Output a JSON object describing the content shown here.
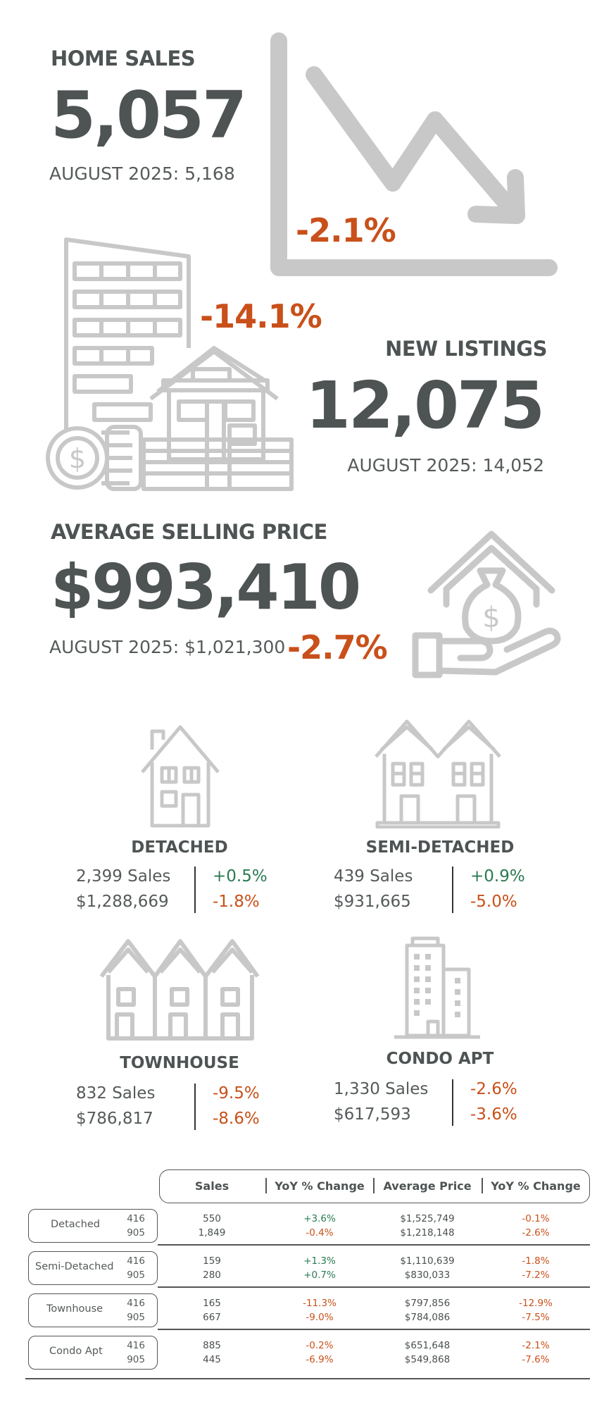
{
  "home_sales": {
    "label": "HOME SALES",
    "value": "5,057",
    "prior": "AUGUST 2025: 5,168",
    "change": "-2.1%"
  },
  "new_listings": {
    "label": "NEW LISTINGS",
    "value": "12,075",
    "prior": "AUGUST 2025: 14,052",
    "change": "-14.1%"
  },
  "avg_price": {
    "label": "AVERAGE SELLING PRICE",
    "value": "$993,410",
    "prior": "AUGUST 2025: $1,021,300",
    "change": "-2.7%"
  },
  "types": [
    {
      "name": "DETACHED",
      "sales": "2,399 Sales",
      "price": "$1,288,669",
      "sales_change": "+0.5%",
      "price_change": "-1.8%"
    },
    {
      "name": "SEMI-DETACHED",
      "sales": "439 Sales",
      "price": "$931,665",
      "sales_change": "+0.9%",
      "price_change": "-5.0%"
    },
    {
      "name": "TOWNHOUSE",
      "sales": "832 Sales",
      "price": "$786,817",
      "sales_change": "-9.5%",
      "price_change": "-8.6%"
    },
    {
      "name": "CONDO APT",
      "sales": "1,330 Sales",
      "price": "$617,593",
      "sales_change": "-2.6%",
      "price_change": "-3.6%"
    }
  ],
  "table": {
    "headers": [
      "Sales",
      "YoY % Change",
      "Average Price",
      "YoY % Change"
    ],
    "rows": [
      {
        "name": "Detached",
        "codes": [
          "416",
          "905"
        ],
        "sales": [
          "550",
          "1,849"
        ],
        "sales_change": [
          "+3.6%",
          "-0.4%"
        ],
        "price": [
          "$1,525,749",
          "$1,218,148"
        ],
        "price_change": [
          "-0.1%",
          "-2.6%"
        ]
      },
      {
        "name": "Semi-Detached",
        "codes": [
          "416",
          "905"
        ],
        "sales": [
          "159",
          "280"
        ],
        "sales_change": [
          "+1.3%",
          "+0.7%"
        ],
        "price": [
          "$1,110,639",
          "$830,033"
        ],
        "price_change": [
          "-1.8%",
          "-7.2%"
        ]
      },
      {
        "name": "Townhouse",
        "codes": [
          "416",
          "905"
        ],
        "sales": [
          "165",
          "667"
        ],
        "sales_change": [
          "-11.3%",
          "-9.0%"
        ],
        "price": [
          "$797,856",
          "$784,086"
        ],
        "price_change": [
          "-12.9%",
          "-7.5%"
        ]
      },
      {
        "name": "Condo Apt",
        "codes": [
          "416",
          "905"
        ],
        "sales": [
          "885",
          "445"
        ],
        "sales_change": [
          "-0.2%",
          "-6.9%"
        ],
        "price": [
          "$651,648",
          "$549,868"
        ],
        "price_change": [
          "-2.1%",
          "-7.6%"
        ]
      }
    ]
  },
  "colors": {
    "negative": "#c9501a",
    "positive": "#2a7a52",
    "icon": "#c8c8c8",
    "heading": "#4e5353"
  },
  "icons": [
    "trend-down-arrow-icon",
    "buildings-house-coins-icon",
    "house-hand-money-bag-icon",
    "detached-house-icon",
    "semi-detached-house-icon",
    "townhouse-icon",
    "condo-tower-icon"
  ]
}
